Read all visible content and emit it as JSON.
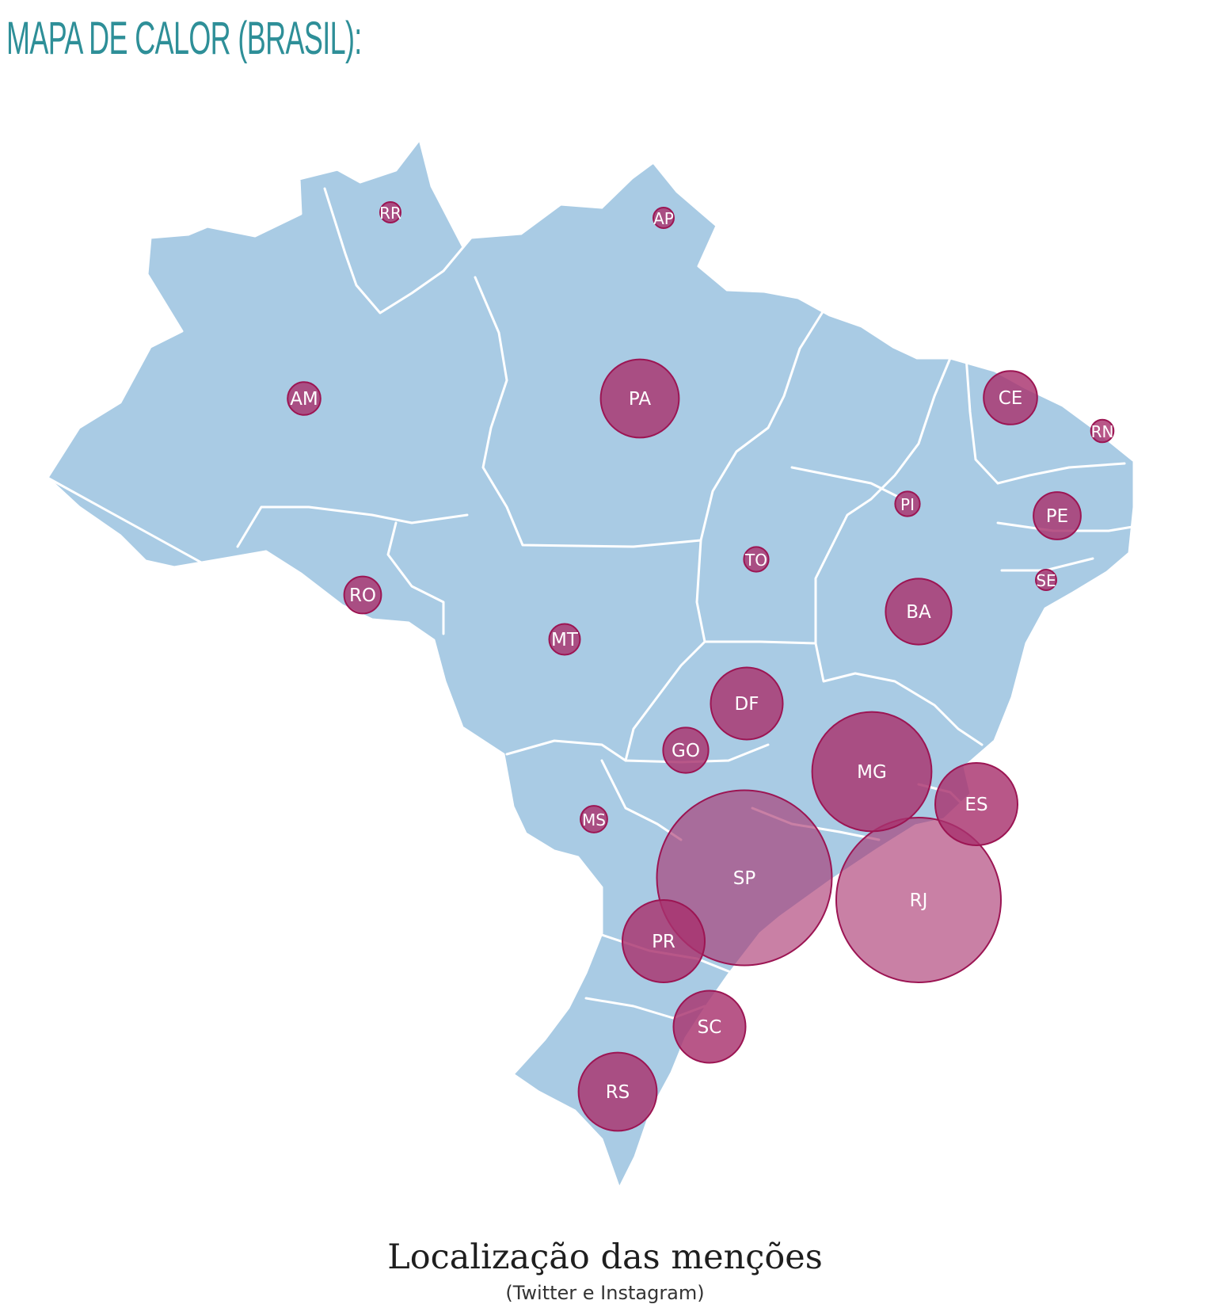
{
  "page": {
    "heading": "MAPA DE CALOR (BRASIL):"
  },
  "map": {
    "type": "bubble map",
    "country": "Brasil",
    "fill_color": "#a9cbe4",
    "border_color": "#ffffff",
    "bubble_color": "#a8326e",
    "bubble_stroke_color": "#9c1553",
    "states": [
      {
        "code": "RR",
        "label": "RR",
        "relative_size": 1
      },
      {
        "code": "AP",
        "label": "AP",
        "relative_size": 1
      },
      {
        "code": "AM",
        "label": "AM",
        "relative_size": 1.6
      },
      {
        "code": "PA",
        "label": "PA",
        "relative_size": 3.8
      },
      {
        "code": "CE",
        "label": "CE",
        "relative_size": 2.6
      },
      {
        "code": "RN",
        "label": "RN",
        "relative_size": 1.1
      },
      {
        "code": "PI",
        "label": "PI",
        "relative_size": 1.2
      },
      {
        "code": "PE",
        "label": "PE",
        "relative_size": 2.3
      },
      {
        "code": "TO",
        "label": "TO",
        "relative_size": 1.2
      },
      {
        "code": "SE",
        "label": "SE",
        "relative_size": 1
      },
      {
        "code": "RO",
        "label": "RO",
        "relative_size": 1.8
      },
      {
        "code": "BA",
        "label": "BA",
        "relative_size": 3.2
      },
      {
        "code": "MT",
        "label": "MT",
        "relative_size": 1.5
      },
      {
        "code": "DF",
        "label": "DF",
        "relative_size": 3.5
      },
      {
        "code": "GO",
        "label": "GO",
        "relative_size": 2.2
      },
      {
        "code": "MG",
        "label": "MG",
        "relative_size": 5.8
      },
      {
        "code": "ES",
        "label": "ES",
        "relative_size": 4
      },
      {
        "code": "MS",
        "label": "MS",
        "relative_size": 1.3
      },
      {
        "code": "SP",
        "label": "SP",
        "relative_size": 8.5
      },
      {
        "code": "RJ",
        "label": "RJ",
        "relative_size": 8
      },
      {
        "code": "PR",
        "label": "PR",
        "relative_size": 4
      },
      {
        "code": "SC",
        "label": "SC",
        "relative_size": 3.5
      },
      {
        "code": "RS",
        "label": "RS",
        "relative_size": 3.8
      }
    ]
  },
  "caption": {
    "title": "Localização das menções",
    "subtitle": "(Twitter e Instagram)"
  }
}
